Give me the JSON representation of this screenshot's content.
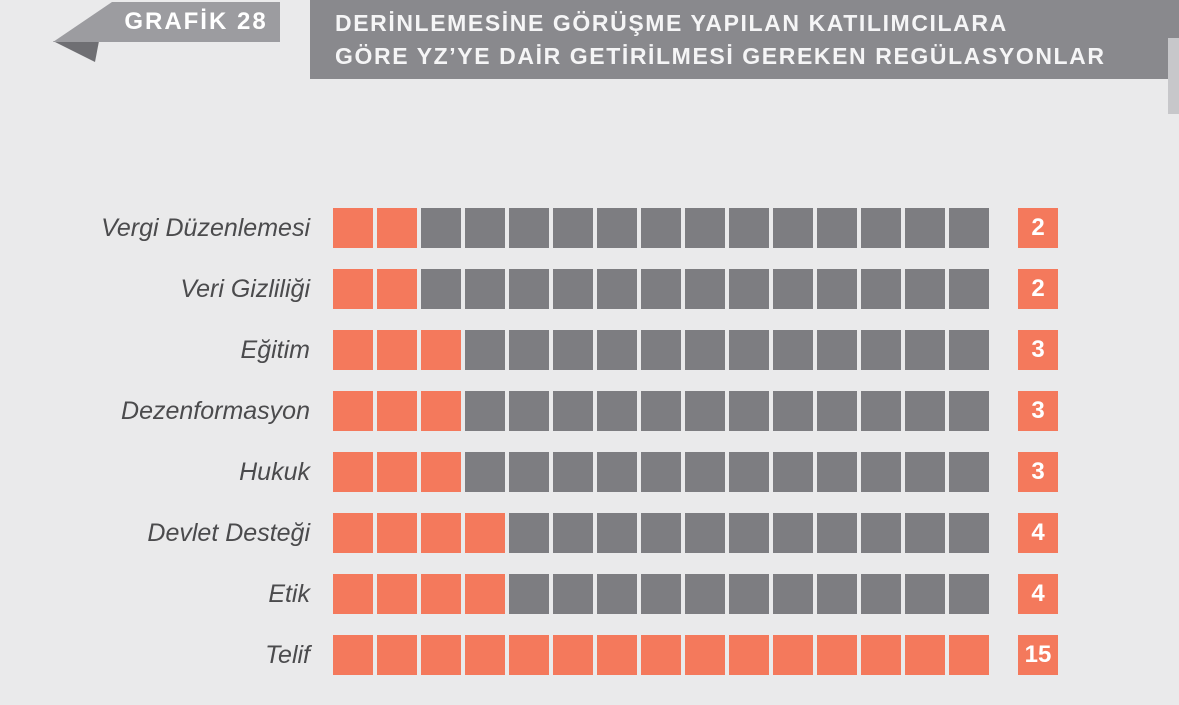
{
  "header": {
    "graph_label": "GRAFİK 28",
    "title_line1": "DERİNLEMESİNE GÖRÜŞME YAPILAN KATILIMCILARA",
    "title_line2": "GÖRE YZ’YE DAİR GETİRİLMESİ GEREKEN REGÜLASYONLAR"
  },
  "chart_data": {
    "type": "bar",
    "variant": "unit-square-rows",
    "title": "DERİNLEMESİNE GÖRÜŞME YAPILAN KATILIMCILARA GÖRE YZ’YE DAİR GETİRİLMESİ GEREKEN REGÜLASYONLAR",
    "categories": [
      "Vergi Düzenlemesi",
      "Veri Gizliliği",
      "Eğitim",
      "Dezenformasyon",
      "Hukuk",
      "Devlet Desteği",
      "Etik",
      "Telif"
    ],
    "values": [
      2,
      2,
      3,
      3,
      3,
      4,
      4,
      15
    ],
    "units_per_row": 15,
    "xlim": [
      0,
      15
    ],
    "legend": "none",
    "grid": false,
    "colors": {
      "filled": "#F4795C",
      "empty": "#7D7D81"
    }
  },
  "colors": {
    "background": "#EAEAEB",
    "title_bar": "#89898D",
    "ribbon": "#9C9CA0",
    "ribbon_fold": "#6F6F73",
    "side_tab": "#C7C7CA",
    "label_text": "#4B4B4D",
    "badge_text": "#FFFFFF"
  }
}
